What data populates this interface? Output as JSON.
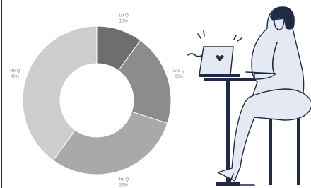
{
  "chart_data": {
    "type": "donut",
    "categories": [
      "1st Q",
      "2nd Q",
      "3rd Q",
      "4th Q"
    ],
    "values": [
      10,
      20,
      30,
      40
    ],
    "value_labels": [
      "10%",
      "20%",
      "30%",
      "40%"
    ],
    "colors": [
      "#6e6e6e",
      "#8c8c8c",
      "#a9a9a9",
      "#cdcdcd"
    ]
  }
}
